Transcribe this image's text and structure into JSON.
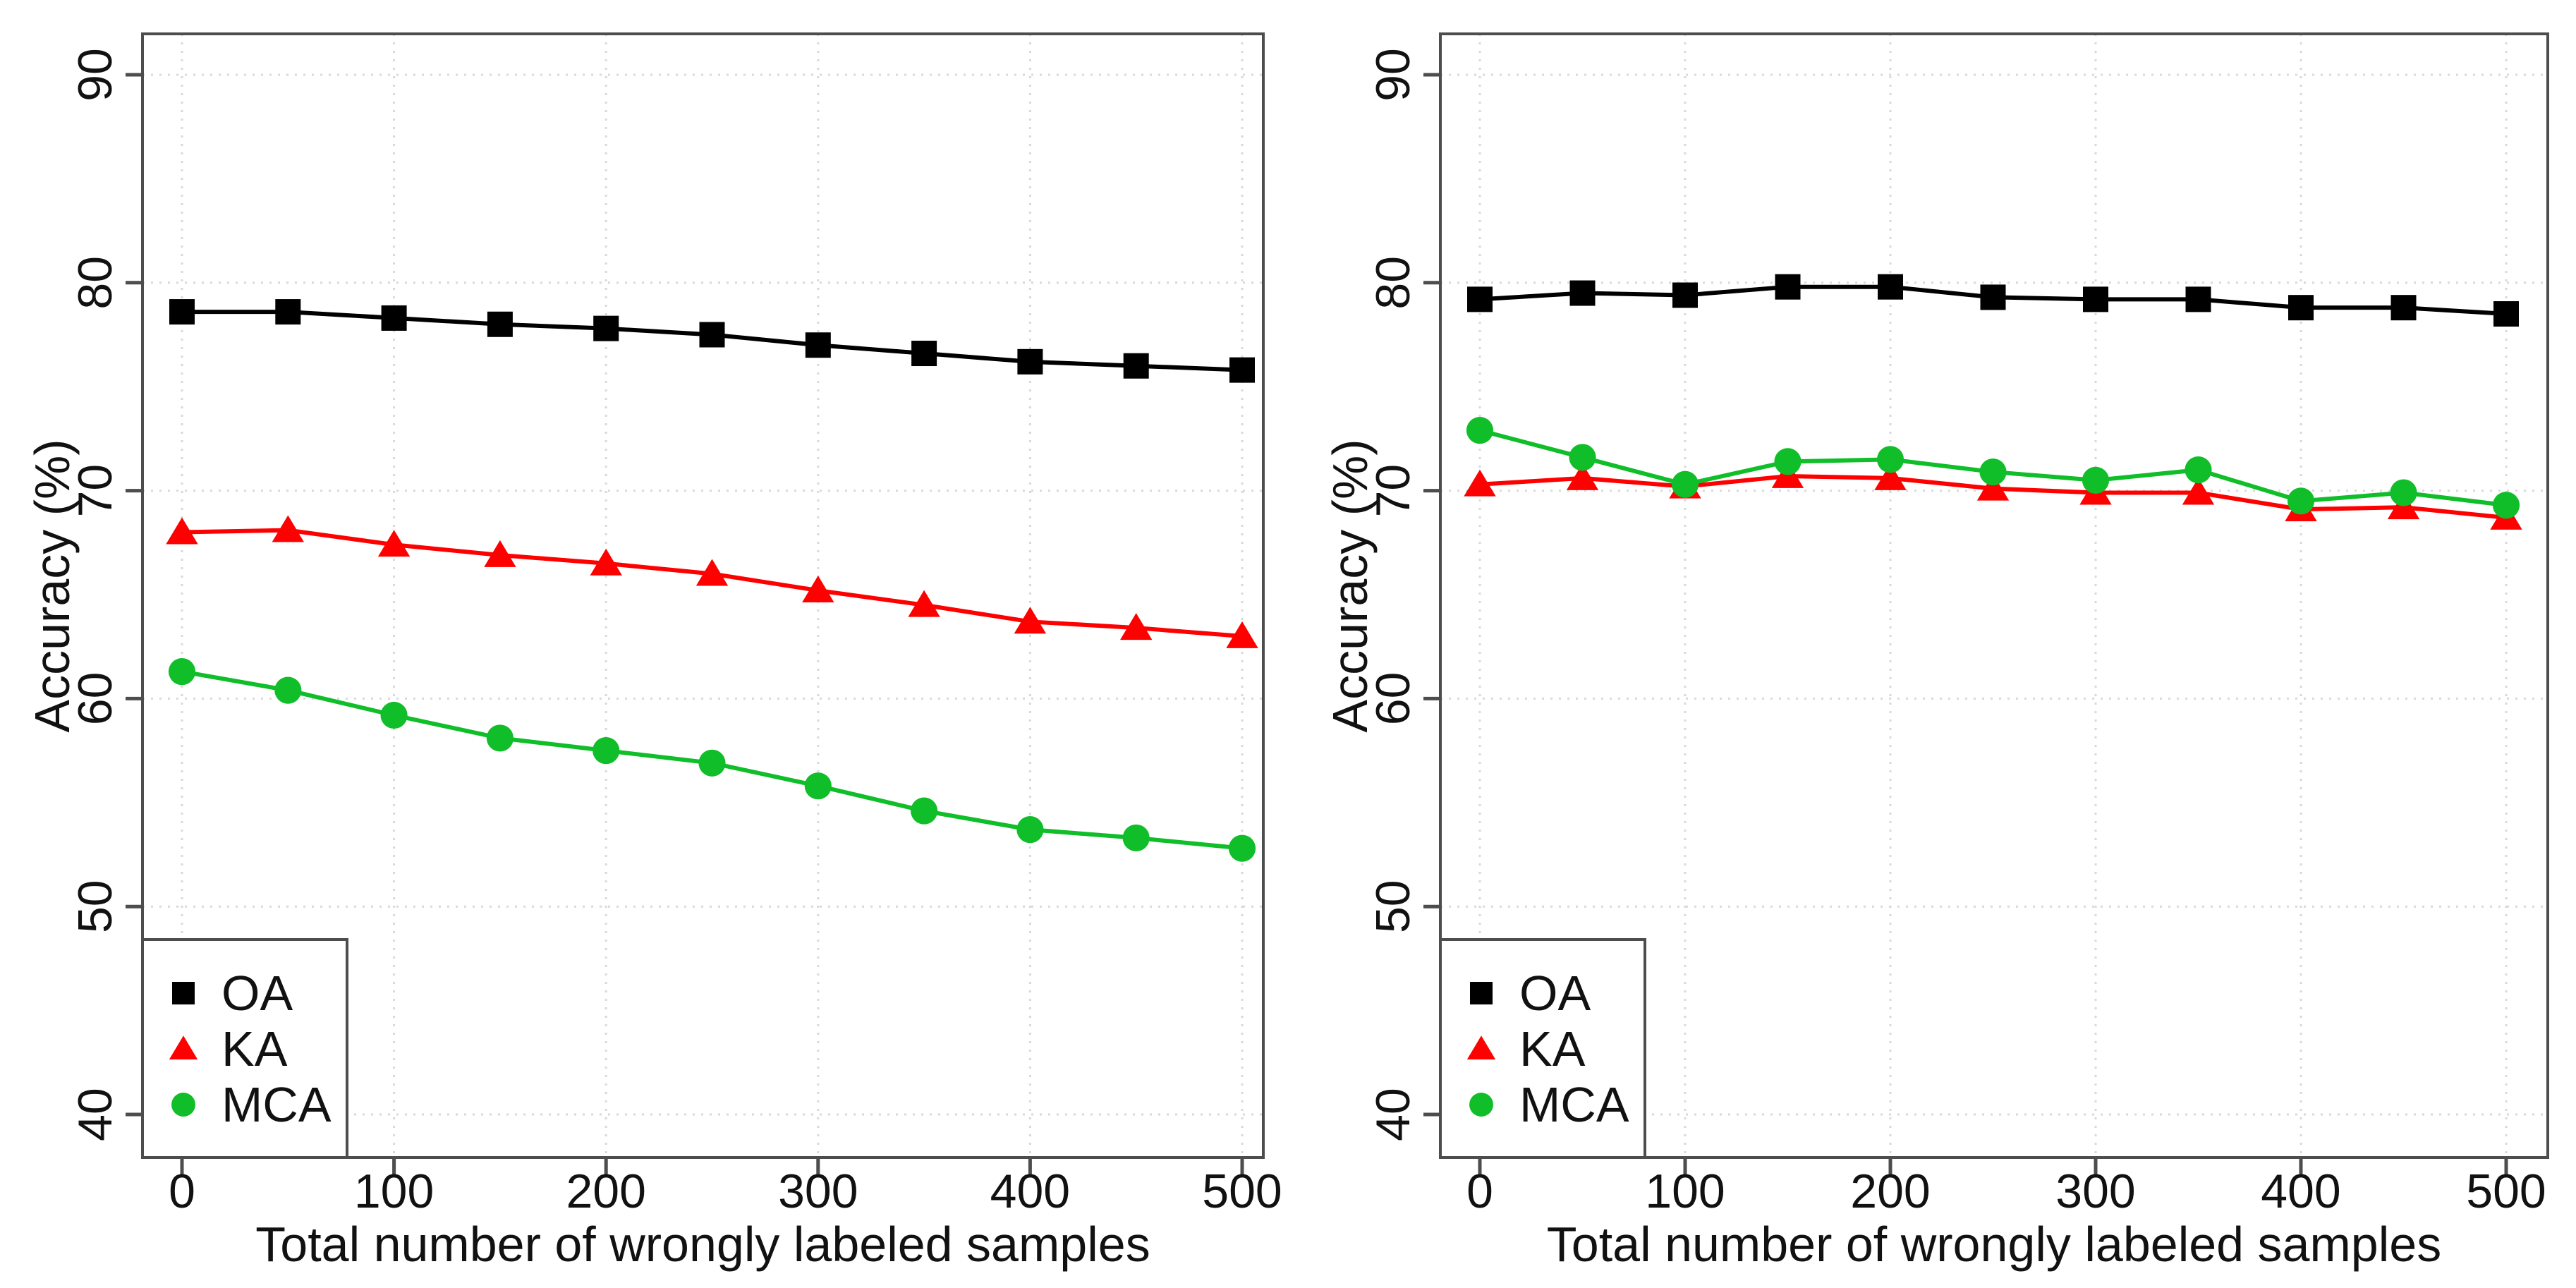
{
  "figure": {
    "background": "#ffffff",
    "panel_count": 2,
    "colors": {
      "axis": "#4d4d4d",
      "grid": "#d9d9d9",
      "text": "#111111",
      "oa": "#000000",
      "ka": "#ff0000",
      "mca": "#0fbe28",
      "legend_background": "#ffffff"
    }
  },
  "chart_data": [
    {
      "panel": "left",
      "type": "line",
      "title": "",
      "xlabel": "Total number of wrongly labeled samples",
      "ylabel": "Accuracy (%)",
      "x": [
        0,
        50,
        100,
        150,
        200,
        250,
        300,
        350,
        400,
        450,
        500
      ],
      "x_ticks": [
        0,
        100,
        200,
        300,
        400,
        500
      ],
      "y_ticks": [
        40,
        50,
        60,
        70,
        80,
        90
      ],
      "xlim": [
        -20,
        510
      ],
      "ylim": [
        37.9,
        92.0
      ],
      "grid": true,
      "legend_position": "bottom-left",
      "series": [
        {
          "name": "OA",
          "marker": "square",
          "color": "#000000",
          "values": [
            78.6,
            78.6,
            78.3,
            78.0,
            77.8,
            77.5,
            77.0,
            76.6,
            76.2,
            76.0,
            75.8
          ]
        },
        {
          "name": "KA",
          "marker": "triangle",
          "color": "#ff0000",
          "values": [
            68.0,
            68.1,
            67.4,
            66.9,
            66.5,
            66.0,
            65.2,
            64.5,
            63.7,
            63.4,
            63.0
          ]
        },
        {
          "name": "MCA",
          "marker": "circle",
          "color": "#0fbe28",
          "values": [
            61.3,
            60.4,
            59.2,
            58.1,
            57.5,
            56.9,
            55.8,
            54.6,
            53.7,
            53.3,
            52.8
          ]
        }
      ]
    },
    {
      "panel": "right",
      "type": "line",
      "title": "",
      "xlabel": "Total number of wrongly labeled samples",
      "ylabel": "Accuracy (%)",
      "x": [
        0,
        50,
        100,
        150,
        200,
        250,
        300,
        350,
        400,
        450,
        500
      ],
      "x_ticks": [
        0,
        100,
        200,
        300,
        400,
        500
      ],
      "y_ticks": [
        40,
        50,
        60,
        70,
        80,
        90
      ],
      "xlim": [
        -20,
        510
      ],
      "ylim": [
        37.9,
        92.0
      ],
      "grid": true,
      "legend_position": "bottom-left",
      "series": [
        {
          "name": "OA",
          "marker": "square",
          "color": "#000000",
          "values": [
            79.2,
            79.5,
            79.4,
            79.8,
            79.8,
            79.3,
            79.2,
            79.2,
            78.8,
            78.8,
            78.5
          ]
        },
        {
          "name": "KA",
          "marker": "triangle",
          "color": "#ff0000",
          "values": [
            70.3,
            70.6,
            70.2,
            70.7,
            70.6,
            70.1,
            69.9,
            69.9,
            69.1,
            69.2,
            68.7
          ]
        },
        {
          "name": "MCA",
          "marker": "circle",
          "color": "#0fbe28",
          "values": [
            72.9,
            71.6,
            70.3,
            71.4,
            71.5,
            70.9,
            70.5,
            71.0,
            69.5,
            69.9,
            69.3
          ]
        }
      ]
    }
  ]
}
